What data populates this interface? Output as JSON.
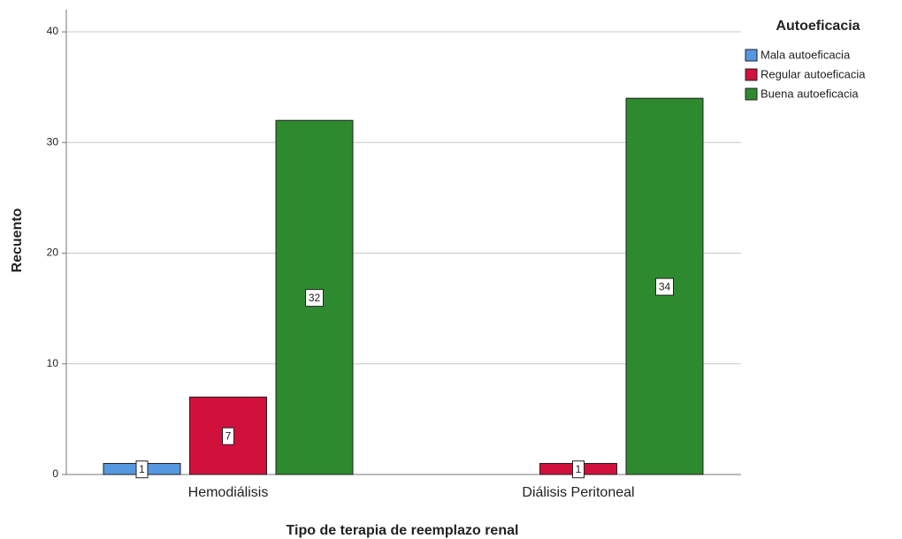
{
  "chart_data": {
    "type": "bar",
    "x_label": "Tipo de terapia de reemplazo renal",
    "y_label": "Recuento",
    "categories": [
      "Hemodiálisis",
      "Diálisis Peritoneal"
    ],
    "legend_title": "Autoeficacia",
    "legend_position": "right",
    "series": [
      {
        "name": "Mala autoeficacia",
        "color": "#5597e0",
        "values": [
          1,
          null
        ]
      },
      {
        "name": "Regular autoeficacia",
        "color": "#d2103c",
        "values": [
          7,
          1
        ]
      },
      {
        "name": "Buena autoeficacia",
        "color": "#2e8a2e",
        "values": [
          32,
          34
        ]
      }
    ],
    "ylim": [
      0,
      42
    ],
    "yticks": [
      0,
      10,
      20,
      30,
      40
    ],
    "grid": true
  }
}
